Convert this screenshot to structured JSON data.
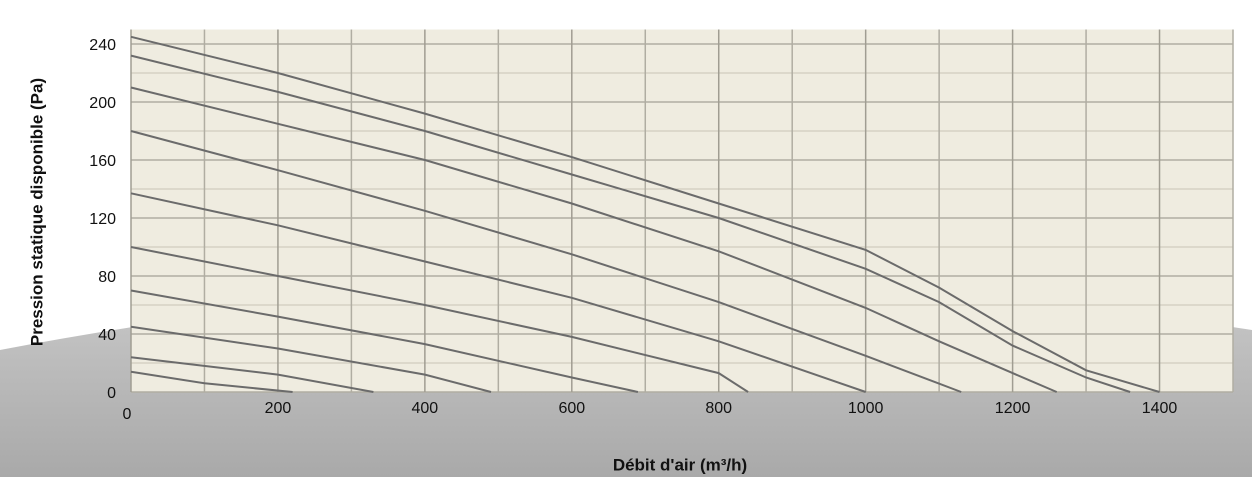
{
  "chart_data": {
    "type": "line",
    "ylabel": "Pression statique disponible (Pa)",
    "xlabel": "Débit d'air (m³/h)",
    "xlim": [
      0,
      1500
    ],
    "ylim": [
      0,
      250
    ],
    "xticks": [
      0,
      200,
      400,
      600,
      800,
      1000,
      1200,
      1400
    ],
    "yticks": [
      0,
      40,
      80,
      120,
      160,
      200,
      240
    ],
    "x_minor_ticks": [
      100,
      300,
      500,
      700,
      900,
      1100,
      1300,
      1500
    ],
    "y_minor_ticks": [
      20,
      60,
      100,
      140,
      180,
      220
    ],
    "grid": true,
    "series": [
      {
        "color": "#6b6b6b",
        "x": [
          0,
          200,
          400,
          600,
          800,
          1000,
          1100,
          1200,
          1300,
          1400
        ],
        "values": [
          245,
          220,
          192,
          162,
          130,
          98,
          72,
          42,
          15,
          0
        ]
      },
      {
        "color": "#6b6b6b",
        "x": [
          0,
          200,
          400,
          600,
          800,
          1000,
          1100,
          1200,
          1300,
          1360
        ],
        "values": [
          232,
          207,
          180,
          150,
          120,
          85,
          62,
          32,
          10,
          0
        ]
      },
      {
        "color": "#6b6b6b",
        "x": [
          0,
          200,
          400,
          600,
          800,
          1000,
          1100,
          1200,
          1260
        ],
        "values": [
          210,
          185,
          160,
          130,
          97,
          58,
          35,
          13,
          0
        ]
      },
      {
        "color": "#6b6b6b",
        "x": [
          0,
          200,
          400,
          600,
          800,
          1000,
          1130
        ],
        "values": [
          180,
          153,
          125,
          95,
          62,
          25,
          0
        ]
      },
      {
        "color": "#6b6b6b",
        "x": [
          0,
          200,
          400,
          600,
          800,
          1000
        ],
        "values": [
          137,
          115,
          90,
          65,
          35,
          0
        ]
      },
      {
        "color": "#6b6b6b",
        "x": [
          0,
          200,
          400,
          600,
          800,
          840
        ],
        "values": [
          100,
          80,
          60,
          38,
          13,
          0
        ]
      },
      {
        "color": "#6b6b6b",
        "x": [
          0,
          200,
          400,
          600,
          690
        ],
        "values": [
          70,
          52,
          33,
          10,
          0
        ]
      },
      {
        "color": "#6b6b6b",
        "x": [
          0,
          200,
          400,
          490
        ],
        "values": [
          45,
          30,
          12,
          0
        ]
      },
      {
        "color": "#6b6b6b",
        "x": [
          0,
          200,
          330
        ],
        "values": [
          24,
          12,
          0
        ]
      },
      {
        "color": "#6b6b6b",
        "x": [
          0,
          100,
          220
        ],
        "values": [
          14,
          6,
          0
        ]
      }
    ]
  }
}
